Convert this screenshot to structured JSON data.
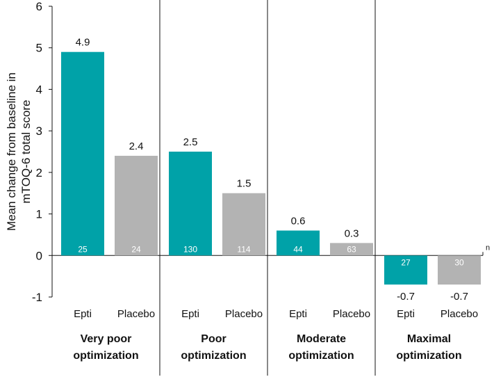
{
  "chart_data": {
    "type": "bar",
    "ylabel_lines": [
      "Mean change from baseline in",
      "mTOQ-6 total score"
    ],
    "ylim": [
      -1,
      6
    ],
    "yticks": [
      -1,
      0,
      1,
      2,
      3,
      4,
      5,
      6
    ],
    "n_label": "n",
    "colors": {
      "Epti": "#00a2a8",
      "Placebo": "#b3b3b3"
    },
    "groups": [
      {
        "name_lines": [
          "Very poor",
          "optimization"
        ],
        "bars": [
          {
            "category": "Epti",
            "value": 4.9,
            "label": "4.9",
            "n": "25"
          },
          {
            "category": "Placebo",
            "value": 2.4,
            "label": "2.4",
            "n": "24"
          }
        ]
      },
      {
        "name_lines": [
          "Poor",
          "optimization"
        ],
        "bars": [
          {
            "category": "Epti",
            "value": 2.5,
            "label": "2.5",
            "n": "130"
          },
          {
            "category": "Placebo",
            "value": 1.5,
            "label": "1.5",
            "n": "114"
          }
        ]
      },
      {
        "name_lines": [
          "Moderate",
          "optimization"
        ],
        "bars": [
          {
            "category": "Epti",
            "value": 0.6,
            "label": "0.6",
            "n": "44"
          },
          {
            "category": "Placebo",
            "value": 0.3,
            "label": "0.3",
            "n": "63"
          }
        ]
      },
      {
        "name_lines": [
          "Maximal",
          "optimization"
        ],
        "bars": [
          {
            "category": "Epti",
            "value": -0.7,
            "label": "-0.7",
            "n": "27"
          },
          {
            "category": "Placebo",
            "value": -0.7,
            "label": "-0.7",
            "n": "30"
          }
        ]
      }
    ]
  }
}
